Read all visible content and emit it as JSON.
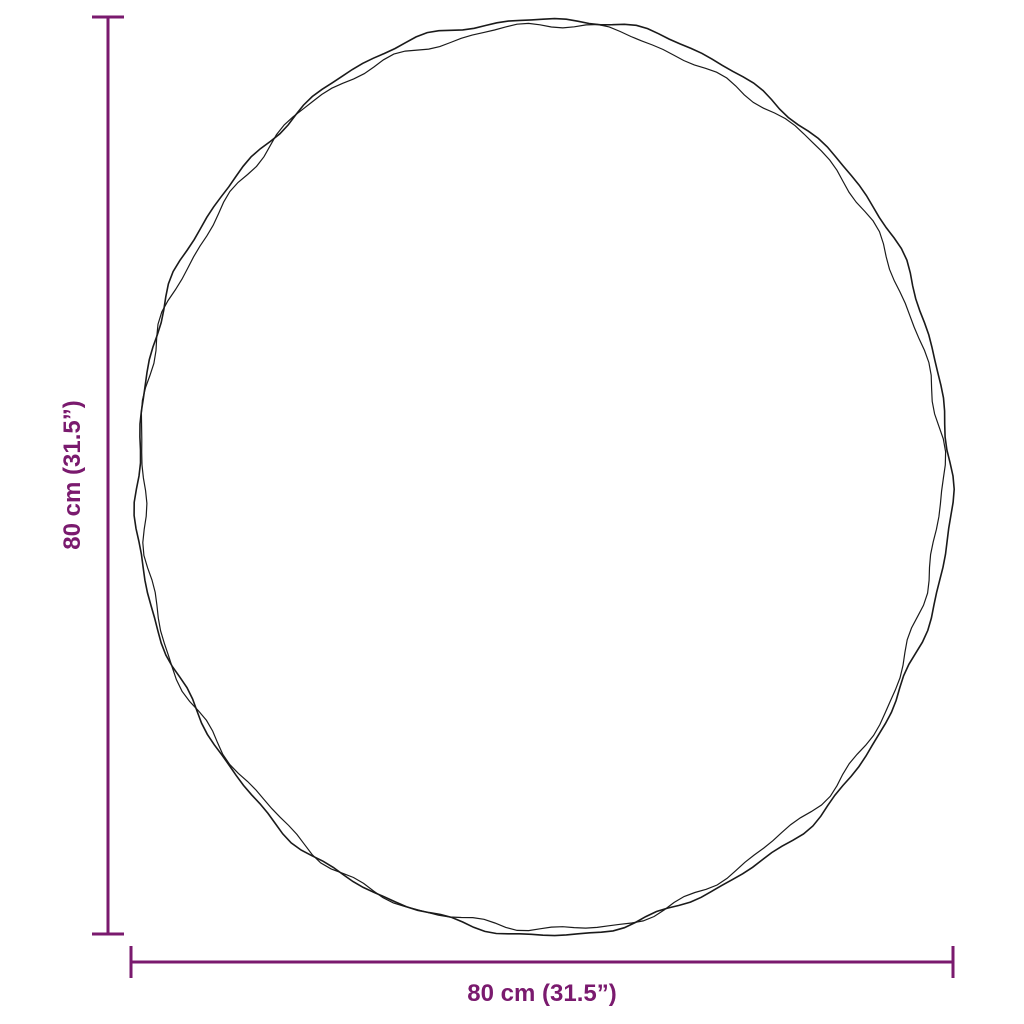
{
  "colors": {
    "dimension": "#7a1a6e",
    "outline": "#1a1a1a"
  },
  "dimensions": {
    "width_label": "80 cm (31.5”)",
    "height_label": "80 cm (31.5”)"
  },
  "object": {
    "shape": "round mirror outline"
  }
}
